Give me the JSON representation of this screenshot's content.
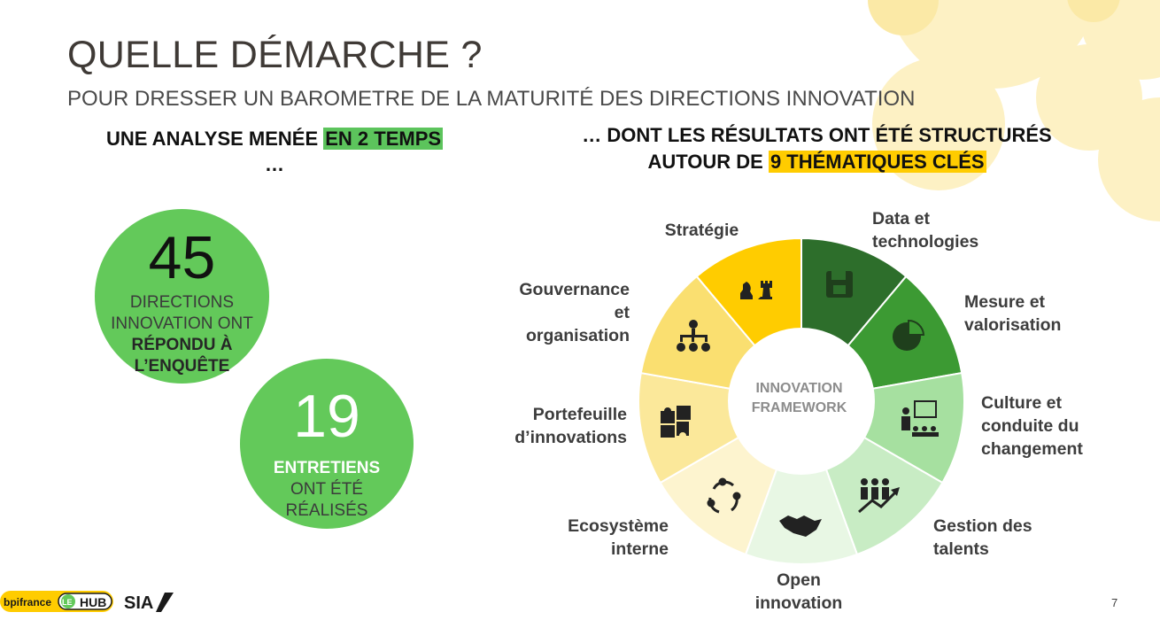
{
  "header": {
    "title": "QUELLE DÉMARCHE ?",
    "subtitle": "POUR DRESSER UN BAROMETRE DE LA MATURITÉ DES DIRECTIONS INNOVATION"
  },
  "left": {
    "heading_part1": "UNE ANALYSE MENÉE ",
    "heading_highlight": "EN 2 TEMPS",
    "heading_part2": " …",
    "stat1": {
      "number": "45",
      "text_line1": "DIRECTIONS",
      "text_line2": "INNOVATION ONT",
      "text_bold1": "RÉPONDU À",
      "text_bold2": "L’ENQUÊTE"
    },
    "stat2": {
      "number": "19",
      "text_bold": "ENTRETIENS",
      "text_line1": "ONT ÉTÉ",
      "text_line2": "RÉALISÉS"
    }
  },
  "right": {
    "heading_part1": "… DONT LES RÉSULTATS ONT ÉTÉ STRUCTURÉS AUTOUR DE ",
    "heading_highlight": "9 THÉMATIQUES CLÉS",
    "center_line1": "INNOVATION",
    "center_line2": "FRAMEWORK",
    "themes": [
      {
        "line1": "Stratégie",
        "line2": "",
        "icon": "chess-icon",
        "color": "#ffcc00"
      },
      {
        "line1": "Data et",
        "line2": "technologies",
        "icon": "floppy-disk-icon",
        "color": "#2d6e2b"
      },
      {
        "line1": "Mesure et",
        "line2": "valorisation",
        "icon": "pie-chart-icon",
        "color": "#3c9a33"
      },
      {
        "line1": "Culture et",
        "line2": "conduite du",
        "line3": "changement",
        "icon": "presentation-icon",
        "color": "#a6e0a0"
      },
      {
        "line1": "Gestion des",
        "line2": "talents",
        "icon": "growth-people-icon",
        "color": "#c8ecc4"
      },
      {
        "line1": "Open",
        "line2": "innovation",
        "icon": "handshake-icon",
        "color": "#e8f7e4"
      },
      {
        "line1": "Ecosystème",
        "line2": "interne",
        "icon": "cycle-icon",
        "color": "#fdf4cf"
      },
      {
        "line1": "Portefeuille",
        "line2": "d’innovations",
        "icon": "puzzle-icon",
        "color": "#fbe89a"
      },
      {
        "line1": "Gouvernance",
        "line2": "et",
        "line3": "organisation",
        "icon": "org-chart-icon",
        "color": "#fadf70"
      }
    ]
  },
  "footer": {
    "brand1": "bpifrance",
    "brand2": "LE",
    "brand3": "HUB",
    "brand4": "SIA",
    "page_number": "7"
  }
}
